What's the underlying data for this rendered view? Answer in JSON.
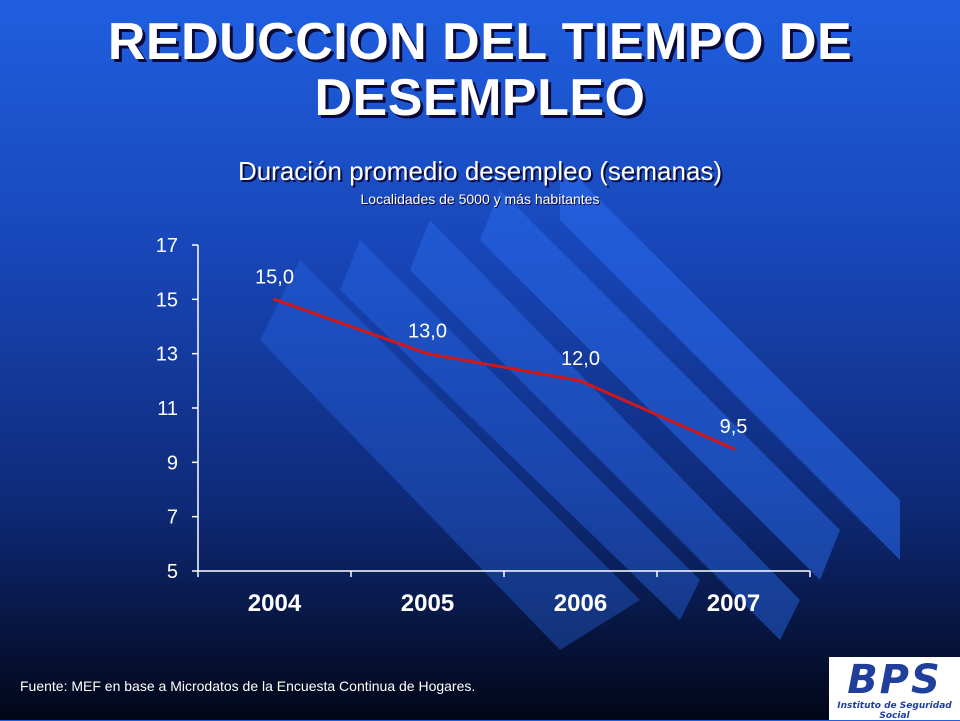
{
  "slide": {
    "title": "REDUCCION DEL TIEMPO DE DESEMPLEO",
    "source_note": "Fuente: MEF en base a Microdatos de la Encuesta Continua de Hogares."
  },
  "logo": {
    "mark": "BPS",
    "caption": "Instituto de Seguridad Social"
  },
  "chart_data": {
    "type": "line",
    "title": "Duración promedio desempleo (semanas)",
    "subtitle": "Localidades de 5000 y más habitantes",
    "categories": [
      "2004",
      "2005",
      "2006",
      "2007"
    ],
    "values": [
      15.0,
      13.0,
      12.0,
      9.5
    ],
    "data_labels": [
      "15,0",
      "13,0",
      "12,0",
      "9,5"
    ],
    "y_ticks": [
      "5",
      "7",
      "9",
      "11",
      "13",
      "15",
      "17"
    ],
    "ylim": [
      5,
      17
    ],
    "grid": false,
    "line_color": "#d01818"
  }
}
